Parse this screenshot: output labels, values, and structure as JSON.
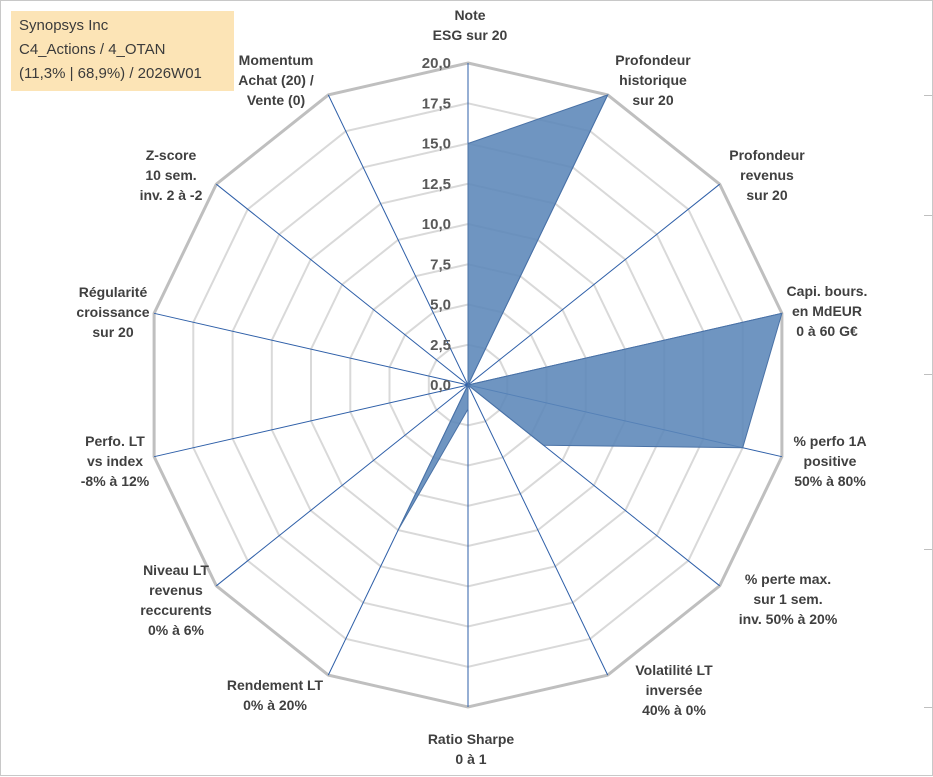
{
  "info": {
    "company": "Synopsys Inc",
    "portfolio": "C4_Actions / 4_OTAN",
    "stats": "(11,3% | 68,9%) / 2026W01"
  },
  "colors": {
    "fill": "#5b86b8",
    "stroke": "#4a72a6",
    "grid_outer": "#bfbfbf",
    "grid_inner": "#d9d9d9",
    "spoke": "#2e5fa8",
    "info_bg": "#fce4b6"
  },
  "chart_data": {
    "type": "radar",
    "rmin": 0,
    "rmax": 20,
    "step": 2.5,
    "tick_labels": [
      "0,0",
      "2,5",
      "5,0",
      "7,5",
      "10,0",
      "12,5",
      "15,0",
      "17,5",
      "20,0"
    ],
    "axes": [
      [
        "Note",
        "ESG sur 20"
      ],
      [
        "Profondeur",
        "historique",
        "sur 20"
      ],
      [
        "Profondeur",
        "revenus",
        "sur 20"
      ],
      [
        "Capi. bours.",
        "en MdEUR",
        "0 à 60 G€"
      ],
      [
        "% perfo 1A",
        "positive",
        "50% à 80%"
      ],
      [
        "% perte max.",
        "sur 1 sem.",
        "inv. 50% à 20%"
      ],
      [
        "Volatilité LT",
        "inversée",
        "40% à 0%"
      ],
      [
        "Ratio Sharpe",
        "0 à 1"
      ],
      [
        "Rendement LT",
        "0% à 20%"
      ],
      [
        "Niveau LT",
        "revenus",
        "reccurents",
        "0% à 6%"
      ],
      [
        "Perfo. LT",
        "vs index",
        "-8% à 12%"
      ],
      [
        "Régularité",
        "croissance",
        "sur 20"
      ],
      [
        "Z-score",
        "10 sem.",
        "inv. 2 à -2"
      ],
      [
        "Momentum",
        "Achat (20) /",
        "Vente (0)"
      ]
    ],
    "series": [
      {
        "name": "Synopsys Inc",
        "values": [
          15,
          20,
          0,
          20,
          17.5,
          6,
          0,
          1.5,
          10,
          0,
          0,
          0,
          0,
          0
        ]
      }
    ]
  }
}
